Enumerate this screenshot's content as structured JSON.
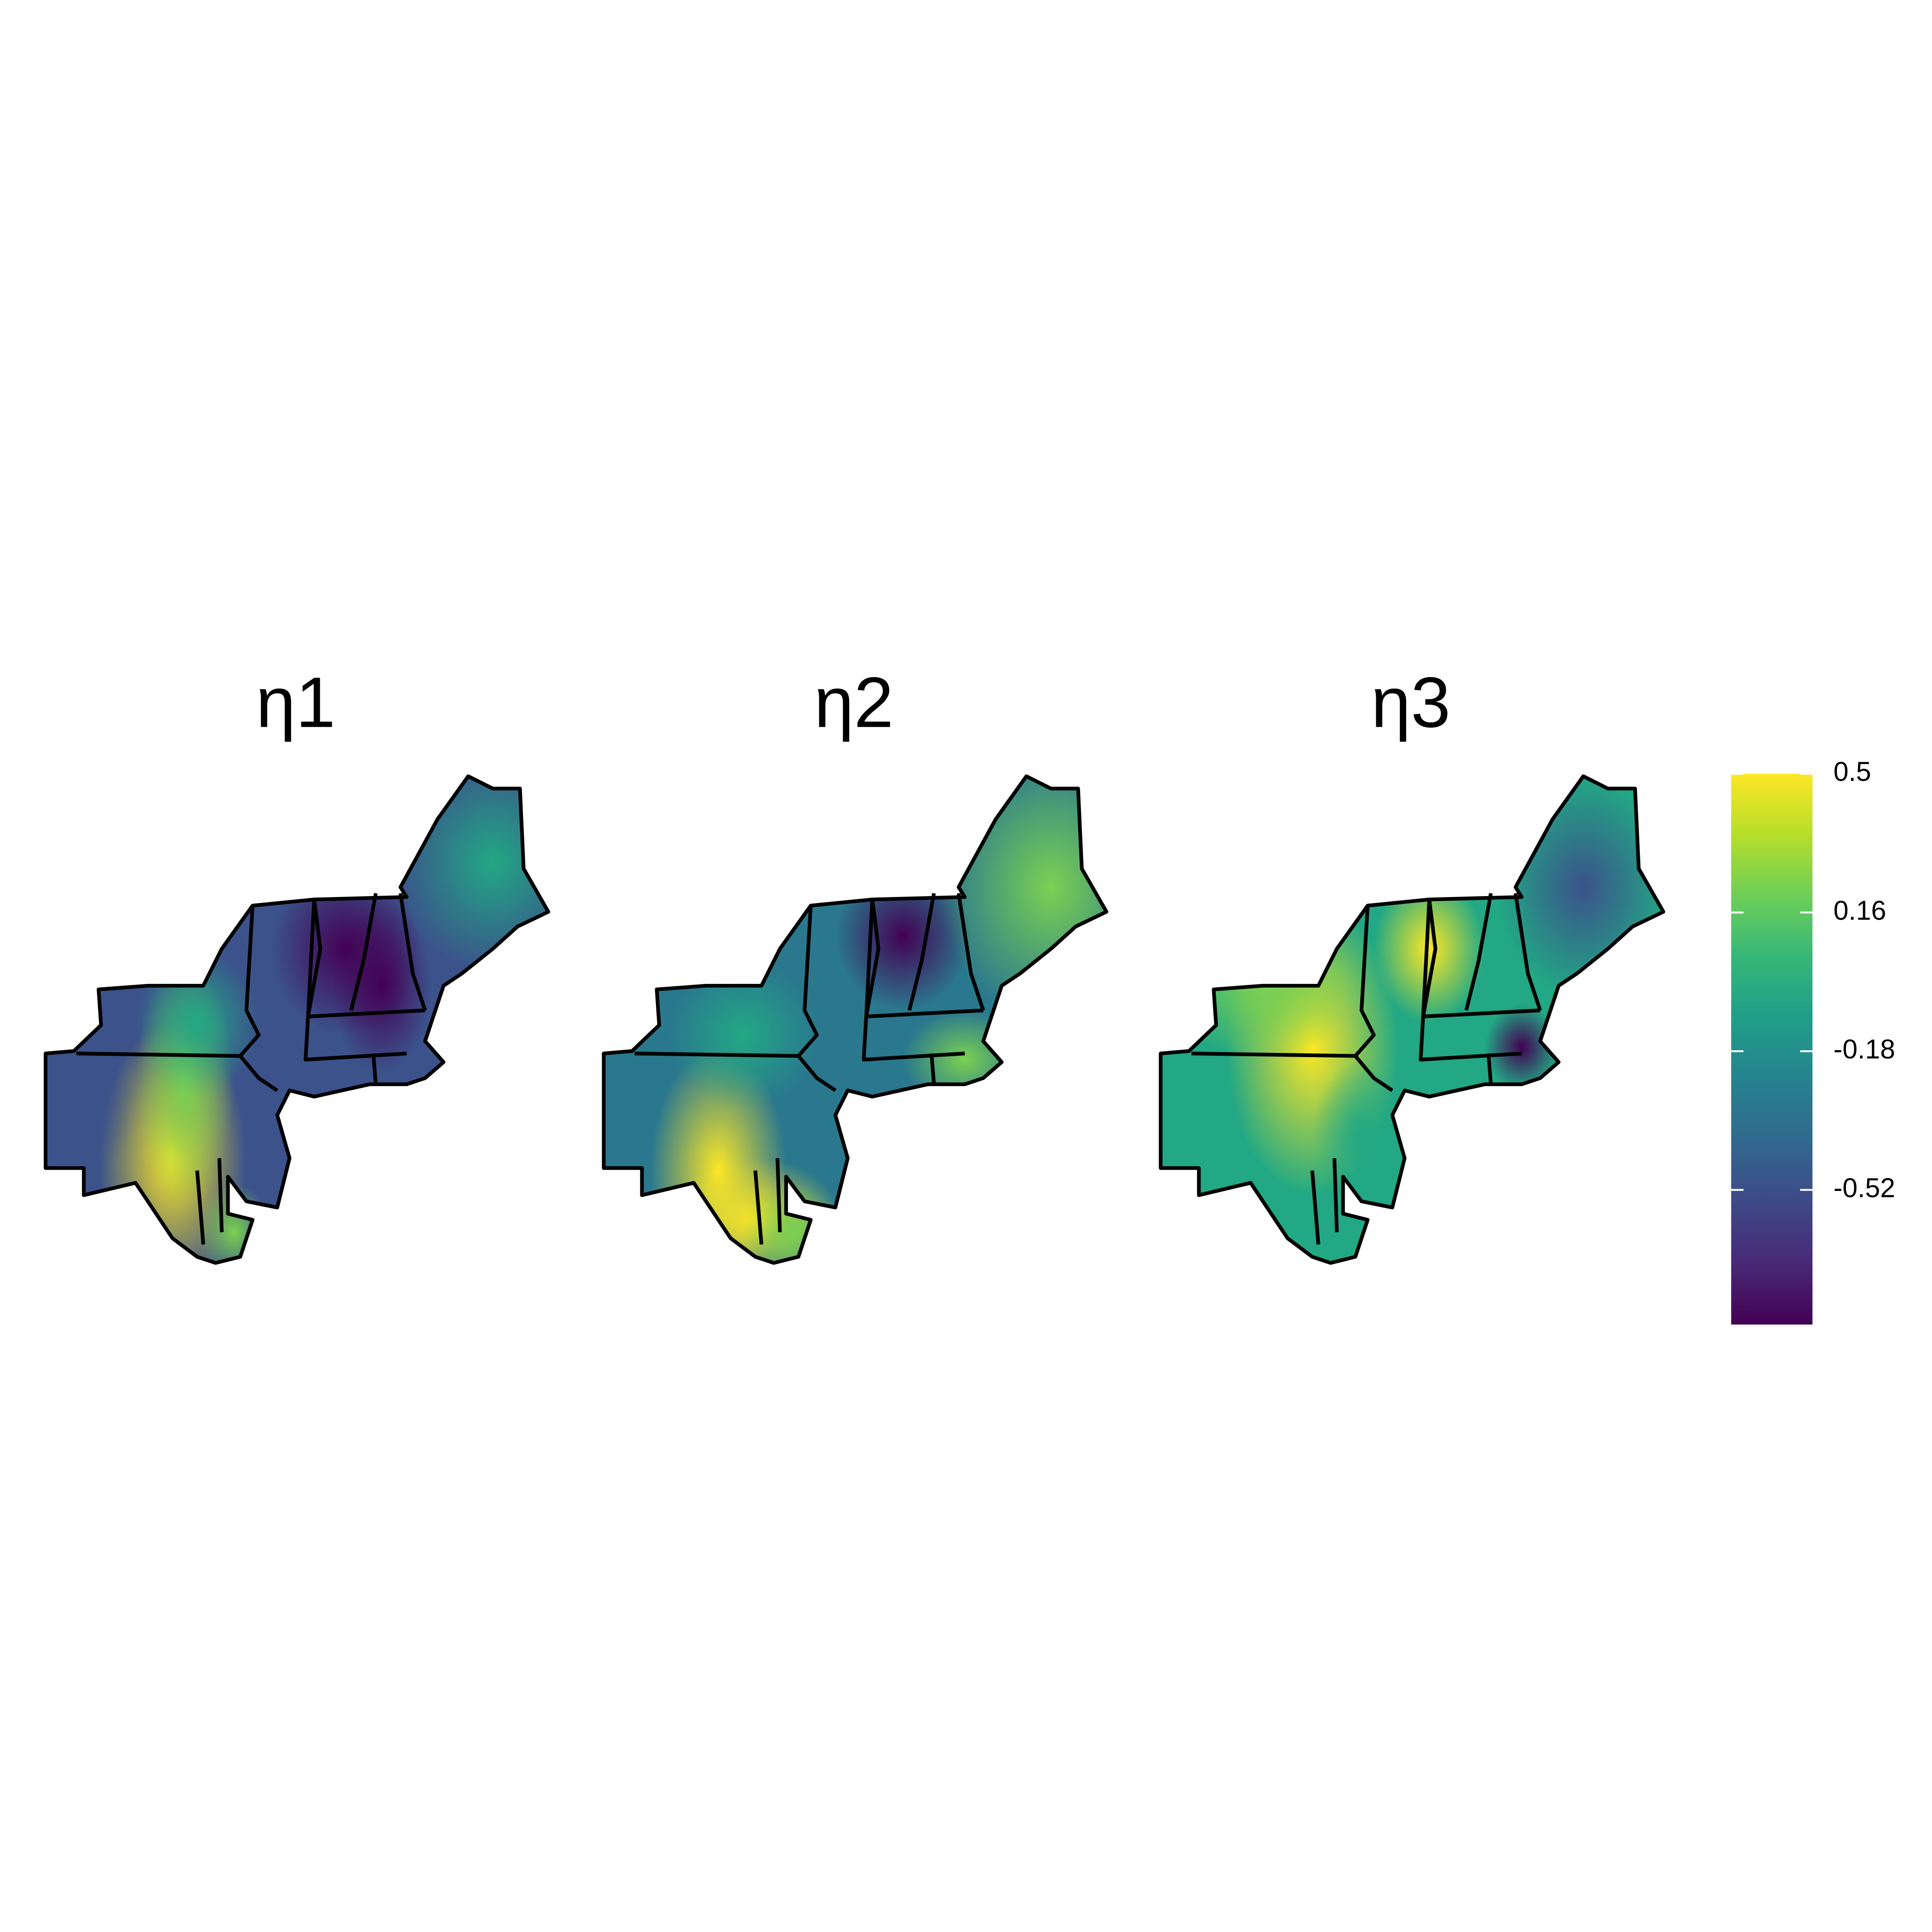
{
  "chart_data": {
    "type": "map",
    "titles": [
      "η1",
      "η2",
      "η3"
    ],
    "colormap": "viridis",
    "colorbar": {
      "ylim": [
        -0.85,
        0.5
      ],
      "yticks": [
        0.5,
        0.16,
        -0.18,
        -0.52
      ]
    }
  }
}
